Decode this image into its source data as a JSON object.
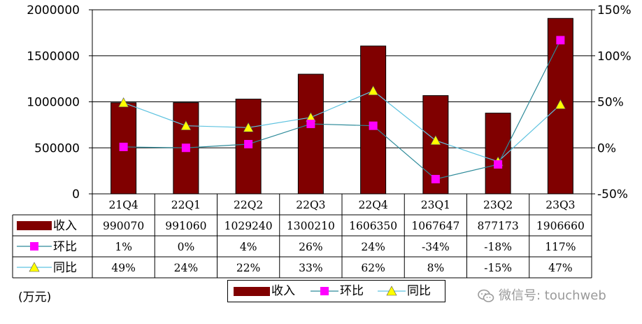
{
  "chart_data": {
    "type": "bar",
    "categories": [
      "21Q4",
      "22Q1",
      "22Q2",
      "22Q3",
      "22Q4",
      "23Q1",
      "23Q2",
      "23Q3"
    ],
    "series": [
      {
        "name": "收入",
        "type": "bar",
        "axis": "left",
        "color": "#800000",
        "values": [
          990070,
          991060,
          1029240,
          1300210,
          1606350,
          1067647,
          877173,
          1906660
        ]
      },
      {
        "name": "环比",
        "type": "line",
        "axis": "right",
        "color": "#FF00FF",
        "line_color": "#2E8B9A",
        "marker": "square",
        "values": [
          1,
          0,
          4,
          26,
          24,
          -34,
          -18,
          117
        ]
      },
      {
        "name": "同比",
        "type": "line",
        "axis": "right",
        "color": "#FFFF00",
        "line_color": "#5FC3E0",
        "marker": "triangle",
        "values": [
          49,
          24,
          22,
          33,
          62,
          8,
          -15,
          47
        ]
      }
    ],
    "y_left": {
      "min": 0,
      "max": 2000000,
      "ticks": [
        "0",
        "500000",
        "1000000",
        "1500000",
        "2000000"
      ]
    },
    "y_right": {
      "min": -50,
      "max": 150,
      "ticks": [
        "-50%",
        "0%",
        "50%",
        "100%",
        "150%"
      ]
    },
    "table": {
      "row_labels": [
        "收入",
        "环比",
        "同比"
      ],
      "rows": [
        [
          "990070",
          "991060",
          "1029240",
          "1300210",
          "1606350",
          "1067647",
          "877173",
          "1906660"
        ],
        [
          "1%",
          "0%",
          "4%",
          "26%",
          "24%",
          "-34%",
          "-18%",
          "117%"
        ],
        [
          "49%",
          "24%",
          "22%",
          "33%",
          "62%",
          "8%",
          "-15%",
          "47%"
        ]
      ]
    },
    "unit": "(万元)",
    "legend": [
      "收入",
      "环比",
      "同比"
    ],
    "legend_position": "bottom"
  },
  "watermark": "微信号: touchweb"
}
